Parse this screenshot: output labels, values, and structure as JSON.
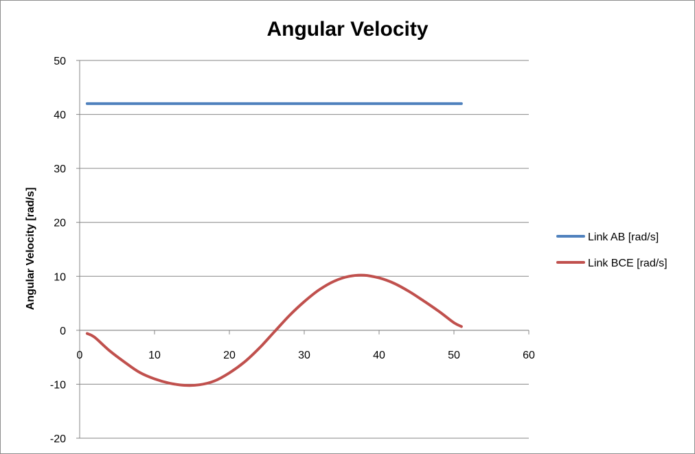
{
  "chart_data": {
    "type": "line",
    "title": "Angular Velocity",
    "xlabel": "",
    "ylabel": "Angular Velocity [rad/s]",
    "xlim": [
      0,
      60
    ],
    "ylim": [
      -20,
      50
    ],
    "x_ticks": [
      "0",
      "10",
      "20",
      "30",
      "40",
      "50",
      "60"
    ],
    "y_ticks": [
      "-20",
      "-10",
      "0",
      "10",
      "20",
      "30",
      "40",
      "50"
    ],
    "grid": "horizontal",
    "legend_position": "right",
    "series": [
      {
        "name": "Link AB [rad/s]",
        "color": "#4f81bd",
        "x": [
          1,
          51
        ],
        "y": [
          42,
          42
        ]
      },
      {
        "name": "Link BCE [rad/s]",
        "color": "#c0504d",
        "x": [
          1,
          2,
          4,
          6,
          8,
          10,
          12,
          14,
          16,
          18,
          20,
          22,
          24,
          26,
          28,
          30,
          32,
          34,
          36,
          38,
          40,
          42,
          44,
          46,
          48,
          50,
          51
        ],
        "y": [
          -0.6,
          -1.3,
          -3.8,
          -5.9,
          -7.8,
          -9.0,
          -9.8,
          -10.2,
          -10.1,
          -9.4,
          -7.9,
          -5.9,
          -3.3,
          -0.3,
          2.7,
          5.3,
          7.5,
          9.1,
          10.0,
          10.2,
          9.7,
          8.7,
          7.2,
          5.4,
          3.5,
          1.4,
          0.7
        ]
      }
    ]
  }
}
